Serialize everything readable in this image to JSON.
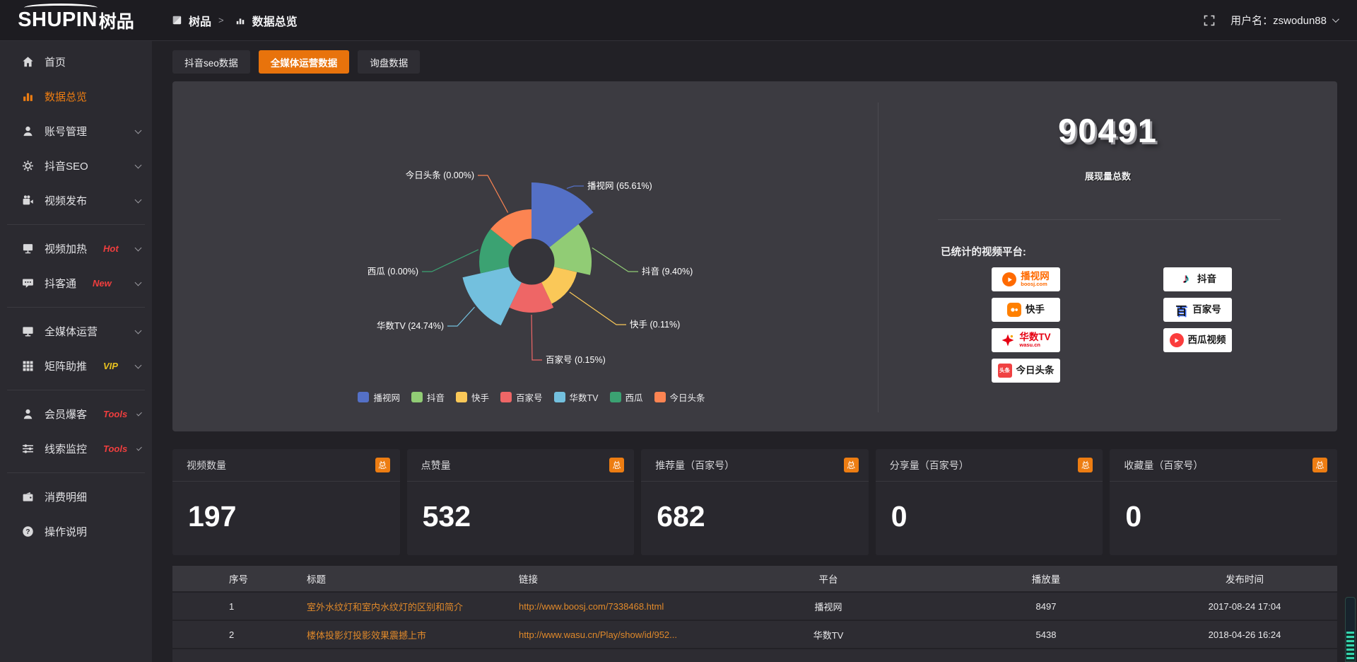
{
  "colors": {
    "accent": "#ed7d12",
    "tab_active": "#e8730c",
    "link": "#e0892a",
    "hot_badge": "#f03e3e",
    "vip_badge": "#e8c21f"
  },
  "topbar": {
    "logo_en": "SHUPIN",
    "logo_cn": "树品",
    "breadcrumb_root": "树品",
    "breadcrumb_sep": ">",
    "breadcrumb_current": "数据总览",
    "username": "用户名：zswodun88"
  },
  "sidebar": {
    "items": [
      {
        "label": "首页",
        "icon": "home",
        "badge": "",
        "badge_color": "",
        "chevron": false,
        "active": false,
        "divider_after": false
      },
      {
        "label": "数据总览",
        "icon": "chart",
        "badge": "",
        "badge_color": "",
        "chevron": false,
        "active": true,
        "divider_after": false
      },
      {
        "label": "账号管理",
        "icon": "user",
        "badge": "",
        "badge_color": "",
        "chevron": true,
        "active": false,
        "divider_after": false
      },
      {
        "label": "抖音SEO",
        "icon": "gear",
        "badge": "",
        "badge_color": "",
        "chevron": true,
        "active": false,
        "divider_after": false
      },
      {
        "label": "视频发布",
        "icon": "video",
        "badge": "",
        "badge_color": "",
        "chevron": true,
        "active": false,
        "divider_after": true
      },
      {
        "label": "视频加热",
        "icon": "heat",
        "badge": "Hot",
        "badge_color": "#f03e3e",
        "chevron": true,
        "active": false,
        "divider_after": false
      },
      {
        "label": "抖客通",
        "icon": "chat",
        "badge": "New",
        "badge_color": "#f03e3e",
        "chevron": true,
        "active": false,
        "divider_after": true
      },
      {
        "label": "全媒体运营",
        "icon": "monitor",
        "badge": "",
        "badge_color": "",
        "chevron": true,
        "active": false,
        "divider_after": false
      },
      {
        "label": "矩阵助推",
        "icon": "grid",
        "badge": "VIP",
        "badge_color": "#e8c21f",
        "chevron": true,
        "active": false,
        "divider_after": true
      },
      {
        "label": "会员爆客",
        "icon": "person",
        "badge": "Tools",
        "badge_color": "#f03e3e",
        "chevron": true,
        "active": false,
        "divider_after": false
      },
      {
        "label": "线索监控",
        "icon": "sliders",
        "badge": "Tools",
        "badge_color": "#f03e3e",
        "chevron": true,
        "active": false,
        "divider_after": true
      },
      {
        "label": "消费明细",
        "icon": "wallet",
        "badge": "",
        "badge_color": "",
        "chevron": false,
        "active": false,
        "divider_after": false
      },
      {
        "label": "操作说明",
        "icon": "question",
        "badge": "",
        "badge_color": "",
        "chevron": false,
        "active": false,
        "divider_after": false
      }
    ]
  },
  "tabs": [
    {
      "label": "抖音seo数据",
      "active": false
    },
    {
      "label": "全媒体运营数据",
      "active": true
    },
    {
      "label": "询盘数据",
      "active": false
    }
  ],
  "chart_data": {
    "type": "pie",
    "variant": "nightingale-rose",
    "categories": [
      "播视网",
      "抖音",
      "快手",
      "百家号",
      "华数TV",
      "西瓜",
      "今日头条"
    ],
    "values_percent": [
      65.61,
      9.4,
      0.11,
      0.15,
      24.74,
      0.0,
      0.0
    ],
    "labels": [
      "播视网 (65.61%)",
      "抖音 (9.40%)",
      "快手 (0.11%)",
      "百家号 (0.15%)",
      "华数TV (24.74%)",
      "西瓜 (0.00%)",
      "今日头条 (0.00%)"
    ],
    "colors": [
      "#5470c6",
      "#91cc75",
      "#fac858",
      "#ee6666",
      "#73c0de",
      "#3ba272",
      "#fc8452"
    ],
    "legend_position": "bottom",
    "total_impressions": 90491
  },
  "summary": {
    "total_value": "90491",
    "total_label": "展现量总数",
    "platforms_title": "已统计的视频平台:",
    "platforms": [
      {
        "name": "播视网",
        "sub": "boosj.com",
        "icon": "boosj",
        "column": 1
      },
      {
        "name": "快手",
        "sub": "",
        "icon": "kuaishou",
        "column": 1
      },
      {
        "name": "华数TV",
        "sub": "wasu.cn",
        "icon": "wasu",
        "column": 1
      },
      {
        "name": "今日头条",
        "sub": "",
        "icon": "toutiao",
        "column": 1
      },
      {
        "name": "抖音",
        "sub": "",
        "icon": "douyin",
        "column": 2
      },
      {
        "name": "百家号",
        "sub": "",
        "icon": "baijia",
        "column": 2
      },
      {
        "name": "西瓜视频",
        "sub": "",
        "icon": "xigua",
        "column": 2
      }
    ]
  },
  "stat_cards": [
    {
      "title": "视频数量",
      "badge": "总",
      "value": "197"
    },
    {
      "title": "点赞量",
      "badge": "总",
      "value": "532"
    },
    {
      "title": "推荐量（百家号）",
      "badge": "总",
      "value": "682"
    },
    {
      "title": "分享量（百家号）",
      "badge": "总",
      "value": "0"
    },
    {
      "title": "收藏量（百家号）",
      "badge": "总",
      "value": "0"
    }
  ],
  "table": {
    "headers": [
      "序号",
      "标题",
      "链接",
      "平台",
      "播放量",
      "发布时间"
    ],
    "rows": [
      {
        "no": "1",
        "title": "室外水纹灯和室内水纹灯的区别和简介",
        "link": "http://www.boosj.com/7338468.html",
        "platform": "播视网",
        "plays": "8497",
        "time": "2017-08-24 17:04"
      },
      {
        "no": "2",
        "title": "楼体投影灯投影效果震撼上市",
        "link": "http://www.wasu.cn/Play/show/id/952...",
        "platform": "华数TV",
        "plays": "5438",
        "time": "2018-04-26 16:24"
      }
    ]
  }
}
